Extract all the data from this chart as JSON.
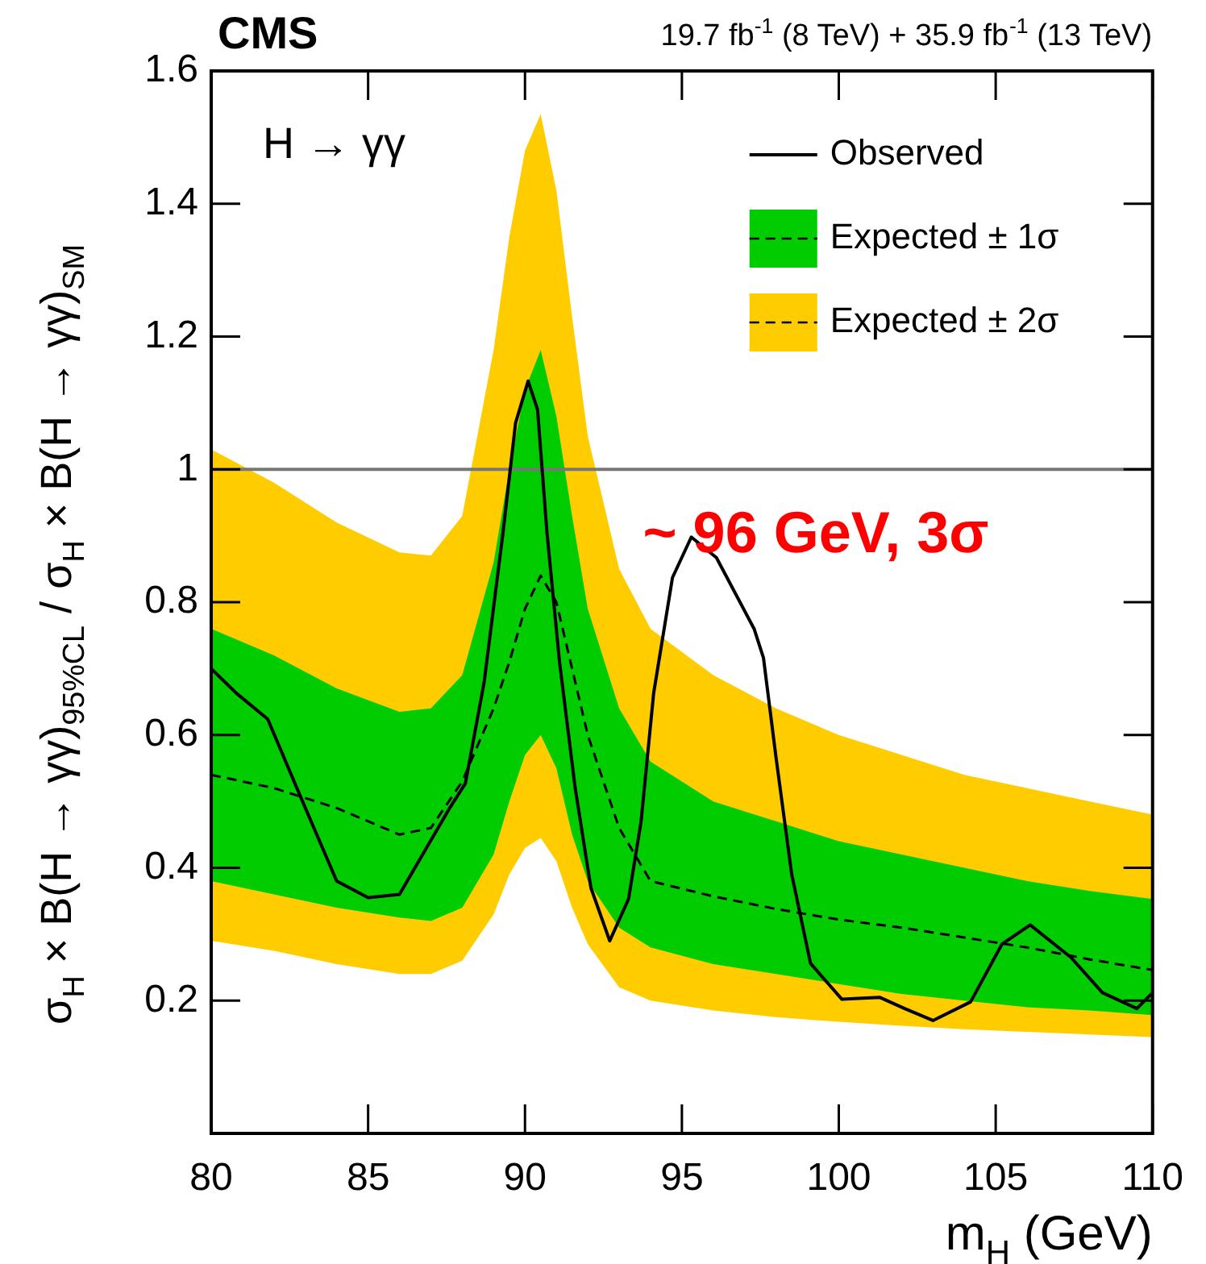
{
  "chart_data": {
    "type": "line",
    "title": "CMS",
    "subtitle": "19.7 fb$^{-1}$ (8 TeV) + 35.9 fb$^{-1}$ (13 TeV)",
    "xlabel": "m$_{H}$ (GeV)",
    "ylabel": "σ$_{H}$ × B(H → γγ)$_{95%CL}$ / σ$_{H}$ × B(H → γγ)$_{SM}$",
    "xlim": [
      80,
      110
    ],
    "xticks": [
      80,
      85,
      90,
      95,
      100,
      105,
      110
    ],
    "ylim": [
      0,
      1.6
    ],
    "yticks": [
      0.2,
      0.4,
      0.6,
      0.8,
      1,
      1.2,
      1.4,
      1.6
    ],
    "grid": false,
    "legend": "top right",
    "marker": "none",
    "ref_lines": [
      {
        "axis": "y",
        "value": 1,
        "color": "#777777"
      }
    ],
    "annotations": [
      "H → γγ",
      {
        "text": "~ 96 GeV, 3σ",
        "x": 95.3,
        "y": 0.9
      }
    ],
    "series": [
      {
        "name": "Expected ± 2σ",
        "type": "line",
        "color": "#ffcc00",
        "x": [
          80,
          82,
          84,
          86,
          87,
          88,
          89,
          89.5,
          90,
          90.5,
          91,
          91.5,
          92,
          93,
          94,
          96,
          98,
          100,
          102,
          104,
          106,
          108,
          110
        ],
        "values": [
          null,
          null,
          null,
          null,
          null,
          null,
          null,
          null,
          null,
          null,
          null,
          null,
          null,
          null,
          null,
          null,
          null,
          null,
          null,
          null,
          null,
          null,
          null
        ],
        "lower": [
          0.29,
          0.275,
          0.255,
          0.24,
          0.24,
          0.26,
          0.33,
          0.39,
          0.43,
          0.445,
          0.41,
          0.34,
          0.285,
          0.22,
          0.2,
          0.185,
          0.175,
          0.168,
          0.162,
          0.157,
          0.153,
          0.149,
          0.145
        ],
        "upper": [
          1.03,
          0.98,
          0.92,
          0.875,
          0.87,
          0.93,
          1.18,
          1.35,
          1.48,
          1.535,
          1.42,
          1.23,
          1.05,
          0.85,
          0.76,
          0.69,
          0.64,
          0.6,
          0.57,
          0.54,
          0.52,
          0.5,
          0.48
        ]
      },
      {
        "name": "Expected ± 1σ",
        "type": "line",
        "color": "#00cc00",
        "x": [
          80,
          82,
          84,
          86,
          87,
          88,
          89,
          89.5,
          90,
          90.5,
          91,
          91.5,
          92,
          93,
          94,
          96,
          98,
          100,
          102,
          104,
          106,
          108,
          110
        ],
        "values": [
          null,
          null,
          null,
          null,
          null,
          null,
          null,
          null,
          null,
          null,
          null,
          null,
          null,
          null,
          null,
          null,
          null,
          null,
          null,
          null,
          null,
          null,
          null
        ],
        "lower": [
          0.38,
          0.36,
          0.34,
          0.325,
          0.32,
          0.34,
          0.42,
          0.5,
          0.57,
          0.6,
          0.55,
          0.45,
          0.38,
          0.31,
          0.28,
          0.255,
          0.24,
          0.225,
          0.21,
          0.2,
          0.19,
          0.185,
          0.178
        ],
        "upper": [
          0.76,
          0.72,
          0.67,
          0.635,
          0.64,
          0.69,
          0.86,
          1.0,
          1.12,
          1.18,
          1.08,
          0.93,
          0.79,
          0.64,
          0.56,
          0.5,
          0.47,
          0.44,
          0.42,
          0.4,
          0.38,
          0.365,
          0.353
        ]
      },
      {
        "line_style": "dashed",
        "color": "#000000",
        "x": [
          80,
          82,
          84,
          86,
          87,
          88,
          89,
          89.5,
          90,
          90.5,
          91,
          91.5,
          92,
          93,
          94,
          96,
          98,
          100,
          102,
          104,
          106,
          108,
          110
        ],
        "values": [
          0.54,
          0.52,
          0.49,
          0.45,
          0.46,
          0.53,
          0.64,
          0.71,
          0.79,
          0.84,
          0.8,
          0.7,
          0.6,
          0.46,
          0.38,
          0.357,
          0.338,
          0.322,
          0.31,
          0.295,
          0.28,
          0.262,
          0.246
        ]
      },
      {
        "name": "Observed",
        "line_style": "solid",
        "color": "#000000",
        "x": [
          80,
          80.8,
          81.8,
          83,
          84,
          85,
          86,
          87.6,
          88.1,
          88.7,
          89.3,
          89.7,
          90.1,
          90.4,
          90.7,
          91.1,
          91.6,
          92.1,
          92.7,
          93.3,
          93.7,
          94.1,
          94.7,
          95.3,
          96.1,
          97.3,
          97.6,
          98,
          98.5,
          99.1,
          100.1,
          101.3,
          102.1,
          103,
          104.2,
          105.2,
          106.1,
          107.4,
          108.4,
          109.5,
          110
        ],
        "values": [
          0.7,
          0.663,
          0.624,
          0.49,
          0.38,
          0.355,
          0.36,
          0.49,
          0.527,
          0.68,
          0.905,
          1.07,
          1.133,
          1.09,
          0.905,
          0.71,
          0.52,
          0.37,
          0.29,
          0.353,
          0.47,
          0.663,
          0.837,
          0.898,
          0.867,
          0.76,
          0.716,
          0.566,
          0.39,
          0.256,
          0.202,
          0.205,
          0.188,
          0.17,
          0.198,
          0.285,
          0.314,
          0.265,
          0.212,
          0.188,
          0.212
        ]
      }
    ]
  }
}
